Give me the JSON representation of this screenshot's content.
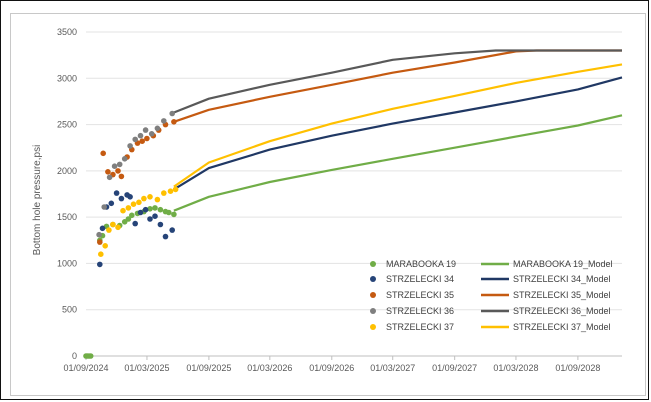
{
  "chart_data": {
    "type": "scatter",
    "title": "",
    "xlabel": "",
    "ylabel": "Bottom hole pressure,psi",
    "xlim": [
      "2024-09-01",
      "2029-01-10"
    ],
    "ylim": [
      0,
      3500
    ],
    "y_ticks": [
      0,
      500,
      1000,
      1500,
      2000,
      2500,
      3000,
      3500
    ],
    "x_ticks": [
      "01/09/2024",
      "01/03/2025",
      "01/09/2025",
      "01/03/2026",
      "01/09/2026",
      "01/03/2027",
      "01/09/2027",
      "01/03/2028",
      "01/09/2028"
    ],
    "x_tick_dates": [
      "2024-09-01",
      "2025-03-01",
      "2025-09-01",
      "2026-03-01",
      "2026-09-01",
      "2027-03-01",
      "2027-09-01",
      "2028-03-01",
      "2028-09-01"
    ],
    "grid": "horizontal",
    "legend_position": "bottom-right",
    "observed_series": [
      {
        "name": "MARABOOKA 19",
        "color": "#70ad47",
        "points": [
          [
            "2024-09-01",
            0
          ],
          [
            "2024-09-05",
            0
          ],
          [
            "2024-09-10",
            0
          ],
          [
            "2024-09-15",
            0
          ],
          [
            "2024-10-12",
            1250
          ],
          [
            "2024-10-20",
            1300
          ],
          [
            "2024-11-01",
            1400
          ],
          [
            "2024-11-20",
            1420
          ],
          [
            "2024-12-10",
            1410
          ],
          [
            "2024-12-25",
            1450
          ],
          [
            "2025-01-05",
            1480
          ],
          [
            "2025-01-15",
            1520
          ],
          [
            "2025-02-01",
            1540
          ],
          [
            "2025-02-20",
            1560
          ],
          [
            "2025-03-10",
            1590
          ],
          [
            "2025-03-25",
            1600
          ],
          [
            "2025-04-10",
            1580
          ],
          [
            "2025-04-25",
            1560
          ],
          [
            "2025-05-05",
            1550
          ],
          [
            "2025-05-20",
            1530
          ]
        ]
      },
      {
        "name": "STRZELECKI 34",
        "color": "#264478",
        "points": [
          [
            "2024-10-12",
            990
          ],
          [
            "2024-10-20",
            1380
          ],
          [
            "2024-11-01",
            1610
          ],
          [
            "2024-11-15",
            1650
          ],
          [
            "2024-12-01",
            1760
          ],
          [
            "2024-12-15",
            1700
          ],
          [
            "2025-01-01",
            1740
          ],
          [
            "2025-01-10",
            1720
          ],
          [
            "2025-01-25",
            1430
          ],
          [
            "2025-02-10",
            1550
          ],
          [
            "2025-02-25",
            1580
          ],
          [
            "2025-03-10",
            1480
          ],
          [
            "2025-03-25",
            1510
          ],
          [
            "2025-04-10",
            1420
          ],
          [
            "2025-04-25",
            1290
          ],
          [
            "2025-05-15",
            1360
          ]
        ]
      },
      {
        "name": "STRZELECKI 35",
        "color": "#c55a11",
        "points": [
          [
            "2024-10-12",
            1230
          ],
          [
            "2024-10-22",
            2190
          ],
          [
            "2024-11-05",
            1990
          ],
          [
            "2024-11-20",
            1960
          ],
          [
            "2024-12-05",
            2000
          ],
          [
            "2024-12-15",
            1940
          ],
          [
            "2025-01-01",
            2150
          ],
          [
            "2025-01-15",
            2230
          ],
          [
            "2025-02-01",
            2300
          ],
          [
            "2025-02-15",
            2320
          ],
          [
            "2025-03-01",
            2350
          ],
          [
            "2025-03-20",
            2380
          ],
          [
            "2025-04-05",
            2440
          ],
          [
            "2025-04-25",
            2500
          ],
          [
            "2025-05-20",
            2530
          ]
        ]
      },
      {
        "name": "STRZELECKI 36",
        "color": "#7f7f7f",
        "points": [
          [
            "2024-10-10",
            1310
          ],
          [
            "2024-10-25",
            1610
          ],
          [
            "2024-11-10",
            1930
          ],
          [
            "2024-11-25",
            2050
          ],
          [
            "2024-12-10",
            2070
          ],
          [
            "2024-12-25",
            2130
          ],
          [
            "2025-01-10",
            2270
          ],
          [
            "2025-01-25",
            2340
          ],
          [
            "2025-02-10",
            2380
          ],
          [
            "2025-02-25",
            2440
          ],
          [
            "2025-03-15",
            2400
          ],
          [
            "2025-04-01",
            2460
          ],
          [
            "2025-04-20",
            2540
          ],
          [
            "2025-05-15",
            2620
          ]
        ]
      },
      {
        "name": "STRZELECKI 37",
        "color": "#ffc000",
        "points": [
          [
            "2024-10-15",
            1100
          ],
          [
            "2024-10-28",
            1190
          ],
          [
            "2024-11-08",
            1360
          ],
          [
            "2024-11-20",
            1420
          ],
          [
            "2024-12-05",
            1390
          ],
          [
            "2024-12-20",
            1570
          ],
          [
            "2025-01-05",
            1600
          ],
          [
            "2025-01-20",
            1640
          ],
          [
            "2025-02-05",
            1660
          ],
          [
            "2025-02-20",
            1700
          ],
          [
            "2025-03-10",
            1720
          ],
          [
            "2025-04-01",
            1690
          ],
          [
            "2025-04-20",
            1760
          ],
          [
            "2025-05-10",
            1780
          ],
          [
            "2025-05-25",
            1800
          ]
        ]
      }
    ],
    "model_series": [
      {
        "name": "MARABOOKA 19_Model",
        "color": "#70ad47",
        "points": [
          [
            "2025-05-20",
            1570
          ],
          [
            "2025-09-01",
            1720
          ],
          [
            "2026-03-01",
            1880
          ],
          [
            "2026-09-01",
            2010
          ],
          [
            "2027-03-01",
            2130
          ],
          [
            "2027-09-01",
            2250
          ],
          [
            "2028-03-01",
            2370
          ],
          [
            "2028-09-01",
            2490
          ],
          [
            "2029-01-10",
            2600
          ]
        ]
      },
      {
        "name": "STRZELECKI 34_Model",
        "color": "#203864",
        "points": [
          [
            "2025-05-20",
            1800
          ],
          [
            "2025-09-01",
            2030
          ],
          [
            "2026-03-01",
            2230
          ],
          [
            "2026-09-01",
            2380
          ],
          [
            "2027-03-01",
            2510
          ],
          [
            "2027-09-01",
            2630
          ],
          [
            "2028-03-01",
            2750
          ],
          [
            "2028-09-01",
            2880
          ],
          [
            "2029-01-10",
            3010
          ]
        ]
      },
      {
        "name": "STRZELECKI 35_Model",
        "color": "#c55a11",
        "points": [
          [
            "2025-05-20",
            2530
          ],
          [
            "2025-09-01",
            2660
          ],
          [
            "2026-03-01",
            2800
          ],
          [
            "2026-09-01",
            2930
          ],
          [
            "2027-03-01",
            3060
          ],
          [
            "2027-09-01",
            3170
          ],
          [
            "2028-03-01",
            3290
          ],
          [
            "2028-05-01",
            3300
          ],
          [
            "2029-01-10",
            3300
          ]
        ]
      },
      {
        "name": "STRZELECKI 36_Model",
        "color": "#595959",
        "points": [
          [
            "2025-05-20",
            2630
          ],
          [
            "2025-09-01",
            2780
          ],
          [
            "2026-03-01",
            2930
          ],
          [
            "2026-09-01",
            3060
          ],
          [
            "2027-03-01",
            3200
          ],
          [
            "2027-09-01",
            3270
          ],
          [
            "2028-01-01",
            3300
          ],
          [
            "2029-01-10",
            3300
          ]
        ]
      },
      {
        "name": "STRZELECKI 37_Model",
        "color": "#ffc000",
        "points": [
          [
            "2025-05-20",
            1830
          ],
          [
            "2025-09-01",
            2090
          ],
          [
            "2026-03-01",
            2320
          ],
          [
            "2026-09-01",
            2510
          ],
          [
            "2027-03-01",
            2670
          ],
          [
            "2027-09-01",
            2810
          ],
          [
            "2028-03-01",
            2950
          ],
          [
            "2028-09-01",
            3070
          ],
          [
            "2029-01-10",
            3150
          ]
        ]
      }
    ]
  }
}
